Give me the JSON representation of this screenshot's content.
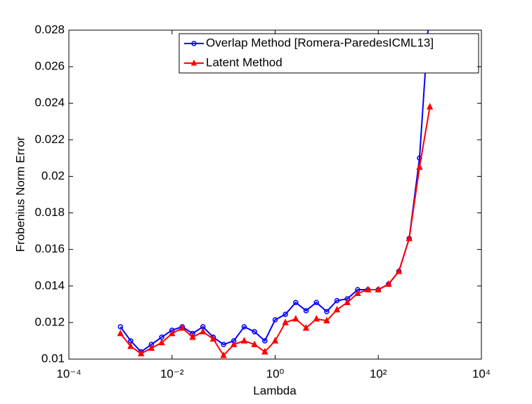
{
  "chart_data": {
    "type": "line",
    "xlabel": "Lambda",
    "ylabel": "Frobenius Norm Error",
    "xscale": "log",
    "xlim": [
      0.0001,
      10000
    ],
    "xticks": [
      {
        "value": 0.0001,
        "label": "10⁻⁴"
      },
      {
        "value": 0.01,
        "label": "10⁻²"
      },
      {
        "value": 1,
        "label": "10⁰"
      },
      {
        "value": 100,
        "label": "10²"
      },
      {
        "value": 10000,
        "label": "10⁴"
      }
    ],
    "ylim": [
      0.01,
      0.028
    ],
    "yticks": [
      0.01,
      0.012,
      0.014,
      0.016,
      0.018,
      0.02,
      0.022,
      0.024,
      0.026,
      0.028
    ],
    "grid": false,
    "legend": "upper right",
    "x": [
      0.001,
      0.00158,
      0.00251,
      0.00398,
      0.00631,
      0.01,
      0.0158,
      0.0251,
      0.0398,
      0.0631,
      0.1,
      0.158,
      0.251,
      0.398,
      0.631,
      1,
      1.58,
      2.51,
      3.98,
      6.31,
      10,
      15.8,
      25.1,
      39.8,
      63.1,
      100,
      158,
      251,
      398,
      631,
      1000
    ],
    "series": [
      {
        "name": "Overlap Method [Romera-ParedesICML13]",
        "color": "#0000ff",
        "marker": "circle",
        "values": [
          0.01177,
          0.011,
          0.0104,
          0.0108,
          0.0112,
          0.01158,
          0.01177,
          0.0114,
          0.01177,
          0.0112,
          0.0108,
          0.011,
          0.01177,
          0.0115,
          0.011,
          0.01215,
          0.01245,
          0.0131,
          0.01265,
          0.0131,
          0.0126,
          0.0132,
          0.0133,
          0.0138,
          0.0138,
          0.0138,
          0.0141,
          0.0148,
          0.0166,
          0.021,
          0.0295
        ]
      },
      {
        "name": "Latent Method",
        "color": "#ff0000",
        "marker": "triangle",
        "values": [
          0.0114,
          0.0107,
          0.0103,
          0.0106,
          0.0109,
          0.0114,
          0.0117,
          0.0112,
          0.0115,
          0.0111,
          0.0102,
          0.0108,
          0.011,
          0.0108,
          0.0104,
          0.011,
          0.012,
          0.0122,
          0.0117,
          0.0122,
          0.0121,
          0.0127,
          0.0131,
          0.0136,
          0.0138,
          0.0138,
          0.0141,
          0.0148,
          0.0166,
          0.0205,
          0.0238
        ]
      }
    ]
  }
}
